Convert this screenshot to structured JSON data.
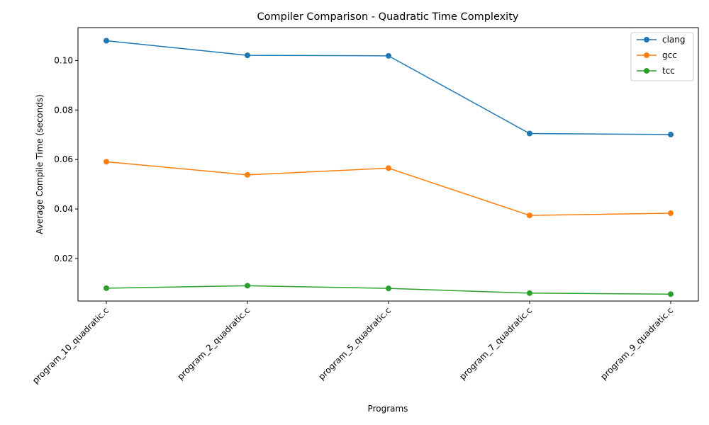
{
  "chart_data": {
    "type": "line",
    "title": "Compiler Comparison - Quadratic Time Complexity",
    "xlabel": "Programs",
    "ylabel": "Average Compile Time (seconds)",
    "categories": [
      "program_10_quadratic.c",
      "program_2_quadratic.c",
      "program_5_quadratic.c",
      "program_7_quadratic.c",
      "program_9_quadratic.c"
    ],
    "ylim": [
      0.0028,
      0.1133
    ],
    "yticks": [
      0.02,
      0.04,
      0.06,
      0.08,
      0.1
    ],
    "ytick_labels": [
      "0.02",
      "0.04",
      "0.06",
      "0.08",
      "0.10"
    ],
    "grid": false,
    "legend_position": "top-right",
    "series": [
      {
        "name": "clang",
        "color": "#1f77b4",
        "marker": "circle",
        "values": [
          0.108,
          0.1021,
          0.1019,
          0.0705,
          0.0701
        ]
      },
      {
        "name": "gcc",
        "color": "#ff7f0e",
        "marker": "circle",
        "values": [
          0.0591,
          0.0538,
          0.0565,
          0.0374,
          0.0383
        ]
      },
      {
        "name": "tcc",
        "color": "#2ca02c",
        "marker": "circle",
        "values": [
          0.008,
          0.009,
          0.0079,
          0.006,
          0.0056
        ]
      }
    ]
  }
}
